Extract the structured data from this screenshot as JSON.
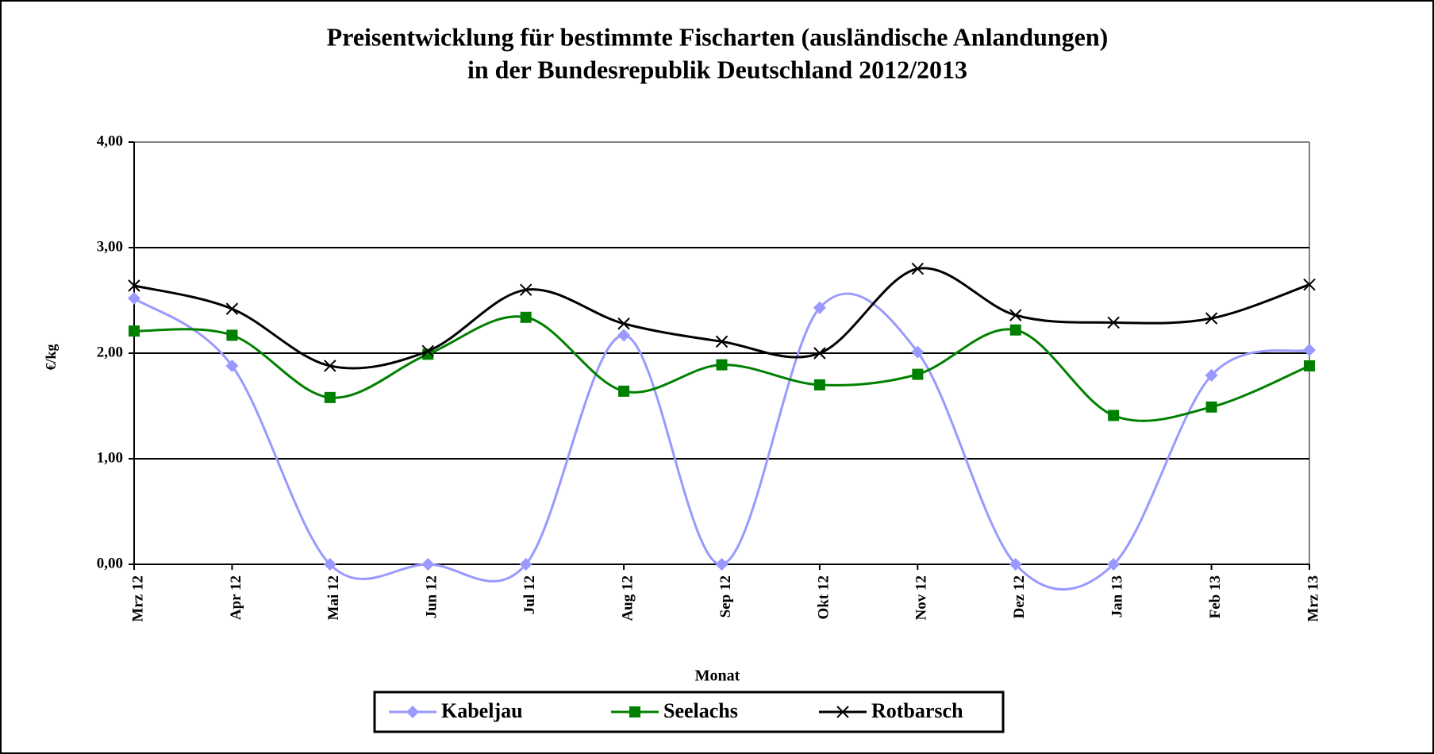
{
  "chart_data": {
    "type": "line",
    "title": "Preisentwicklung für bestimmte Fischarten (ausländische Anlandungen)",
    "subtitle": "in der Bundesrepublik Deutschland  2012/2013",
    "x_label": "Monat",
    "y_label": "€/kg",
    "categories": [
      "Mrz 12",
      "Apr 12",
      "Mai 12",
      "Jun 12",
      "Jul 12",
      "Aug 12",
      "Sep 12",
      "Okt 12",
      "Nov 12",
      "Dez 12",
      "Jan 13",
      "Feb 13",
      "Mrz 13"
    ],
    "series": [
      {
        "name": "Kabeljau",
        "color": "#9999ff",
        "marker": "diamond",
        "values": [
          2.52,
          1.88,
          0,
          0,
          0,
          2.17,
          0,
          2.43,
          2.01,
          0,
          0,
          1.79,
          2.03
        ]
      },
      {
        "name": "Seelachs",
        "color": "#008000",
        "marker": "square",
        "values": [
          2.21,
          2.17,
          1.58,
          1.99,
          2.34,
          1.64,
          1.89,
          1.7,
          1.8,
          2.22,
          1.41,
          1.49,
          1.88
        ]
      },
      {
        "name": "Rotbarsch",
        "color": "#000000",
        "marker": "x",
        "values": [
          2.64,
          2.42,
          1.88,
          2.02,
          2.6,
          2.28,
          2.11,
          2.0,
          2.8,
          2.36,
          2.29,
          2.33,
          2.65
        ]
      }
    ],
    "ylim": [
      0,
      4
    ],
    "yticks": [
      {
        "value": 0,
        "label": "0,00"
      },
      {
        "value": 1,
        "label": "1,00"
      },
      {
        "value": 2,
        "label": "2,00"
      },
      {
        "value": 3,
        "label": "3,00"
      },
      {
        "value": 4,
        "label": "4,00"
      }
    ],
    "grid": true,
    "smooth": true,
    "legend": "bottom"
  }
}
